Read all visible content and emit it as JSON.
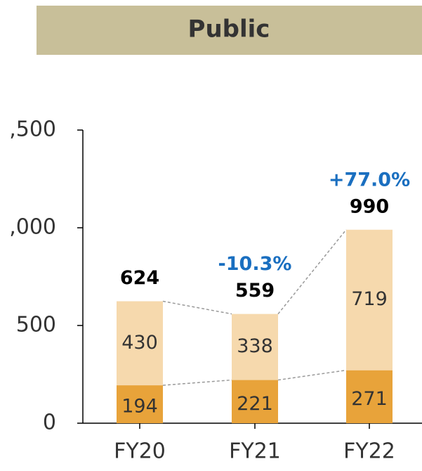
{
  "chart_data": {
    "type": "stacked_bar",
    "title": "Public",
    "categories": [
      "FY20",
      "FY21",
      "FY22"
    ],
    "series": [
      {
        "name": null,
        "color": "#e8a33a",
        "values": [
          194,
          221,
          271
        ]
      },
      {
        "name": null,
        "color": "#f6d9ad",
        "values": [
          430,
          338,
          719
        ]
      }
    ],
    "totals": [
      624,
      559,
      990
    ],
    "growth_labels": [
      null,
      "-10.3%",
      "+77.0%"
    ],
    "growth_color": "#1a6fc0",
    "ylim": [
      0,
      1500
    ],
    "yticks": [
      0,
      500,
      {
        "value": 1000,
        "label": ",000"
      },
      {
        "value": 1500,
        "label": ",500"
      }
    ]
  }
}
